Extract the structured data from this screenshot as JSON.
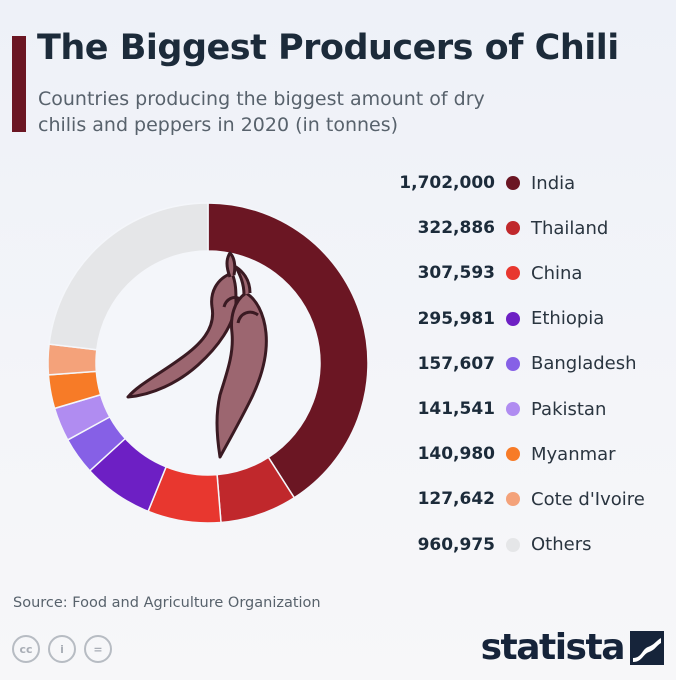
{
  "header": {
    "title": "The Biggest Producers of Chili",
    "subtitle": "Countries producing the biggest amount of dry chilis and peppers in 2020 (in tonnes)"
  },
  "chart_data": {
    "type": "pie",
    "style": "donut",
    "start_angle": "top, clockwise",
    "categories": [
      "India",
      "Thailand",
      "China",
      "Ethiopia",
      "Bangladesh",
      "Pakistan",
      "Myanmar",
      "Cote d'Ivoire",
      "Others"
    ],
    "values": [
      1702000,
      322886,
      307593,
      295981,
      157607,
      141541,
      140980,
      127642,
      960975
    ],
    "value_labels": [
      "1,702,000",
      "322,886",
      "307,593",
      "295,981",
      "157,607",
      "141,541",
      "140,980",
      "127,642",
      "960,975"
    ],
    "colors": [
      "#6b1623",
      "#c0282c",
      "#e8372f",
      "#6d1fc4",
      "#8660e6",
      "#b08cf1",
      "#f77b27",
      "#f4a27a",
      "#e5e6e8"
    ],
    "legend_placement": "right",
    "center_icon": "chili-peppers-icon"
  },
  "footer": {
    "source": "Source: Food and Agriculture Organization",
    "license_icons": [
      "creative-commons-icon",
      "attribution-icon",
      "no-derivatives-icon"
    ],
    "license_glyphs": [
      "cc",
      "i",
      "="
    ],
    "brand": "statista"
  }
}
